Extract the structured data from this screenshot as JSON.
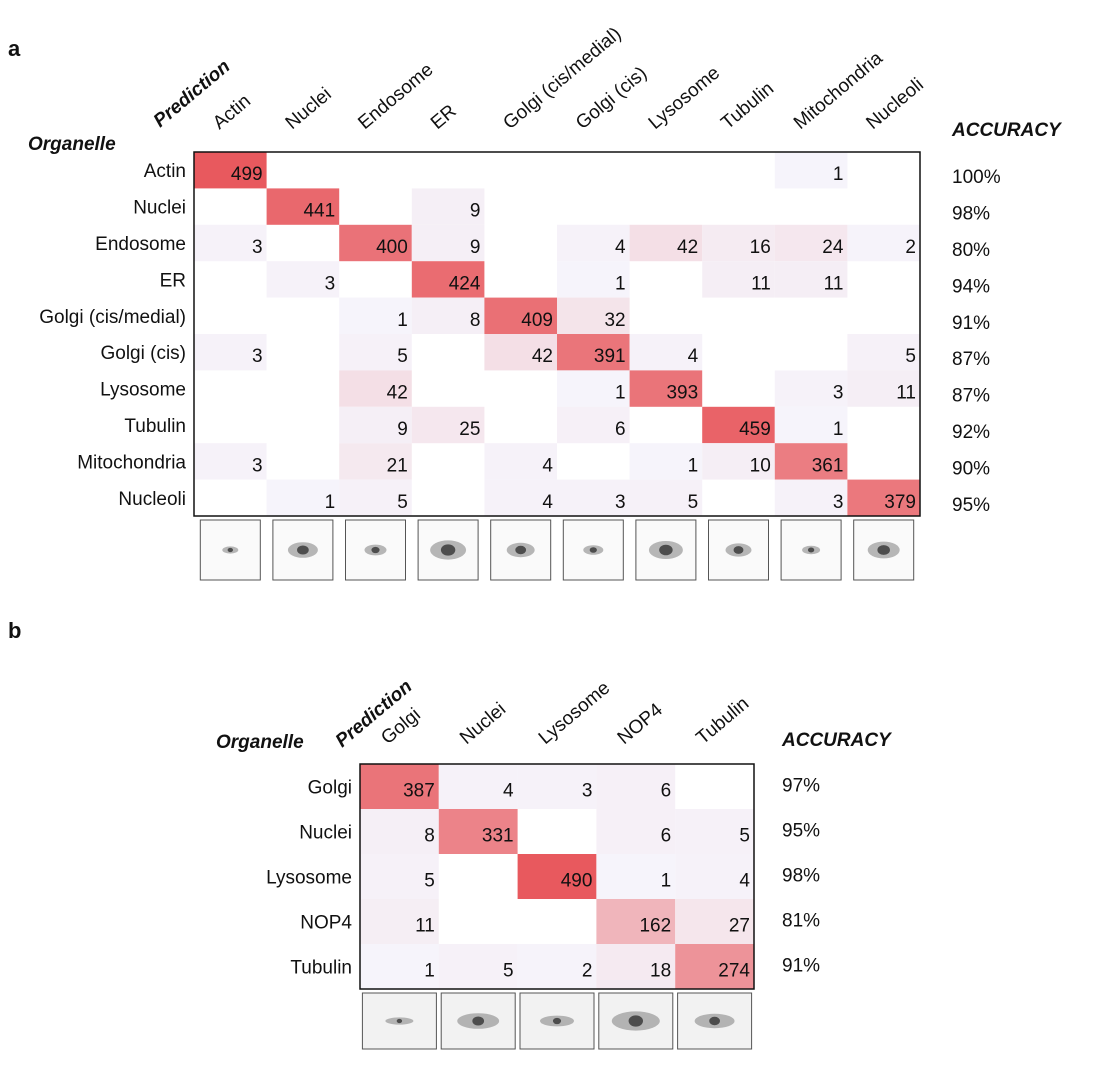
{
  "chart_data": [
    {
      "type": "heatmap",
      "panel": "a",
      "x_label": "Prediction",
      "y_label": "Organelle",
      "accuracy_title": "ACCURACY",
      "color": "#e8595e",
      "categories": [
        "Actin",
        "Nuclei",
        "Endosome",
        "ER",
        "Golgi (cis/medial)",
        "Golgi (cis)",
        "Lysosome",
        "Tubulin",
        "Mitochondria",
        "Nucleoli"
      ],
      "rows": [
        "Actin",
        "Nuclei",
        "Endosome",
        "ER",
        "Golgi (cis/medial)",
        "Golgi (cis)",
        "Lysosome",
        "Tubulin",
        "Mitochondria",
        "Nucleoli"
      ],
      "values": [
        [
          499,
          null,
          null,
          null,
          null,
          null,
          null,
          null,
          1,
          null
        ],
        [
          null,
          441,
          null,
          9,
          null,
          null,
          null,
          null,
          null,
          null
        ],
        [
          3,
          null,
          400,
          9,
          null,
          4,
          42,
          16,
          24,
          2
        ],
        [
          null,
          3,
          null,
          424,
          null,
          1,
          null,
          11,
          11,
          null
        ],
        [
          null,
          null,
          1,
          8,
          409,
          32,
          null,
          null,
          null,
          null
        ],
        [
          3,
          null,
          5,
          null,
          42,
          391,
          4,
          null,
          null,
          5
        ],
        [
          null,
          null,
          42,
          null,
          null,
          1,
          393,
          null,
          3,
          11
        ],
        [
          null,
          null,
          9,
          25,
          null,
          6,
          null,
          459,
          1,
          null
        ],
        [
          3,
          null,
          21,
          null,
          4,
          null,
          1,
          10,
          361,
          null
        ],
        [
          null,
          1,
          5,
          null,
          4,
          3,
          5,
          null,
          3,
          379
        ]
      ],
      "accuracy": {
        "values": [
          100,
          98,
          80,
          94,
          91,
          87,
          87,
          92,
          90,
          95
        ],
        "value_labels": [
          "100%",
          "98%",
          "80%",
          "94%",
          "91%",
          "87%",
          "87%",
          "92%",
          "90%",
          "95%"
        ]
      }
    },
    {
      "type": "heatmap",
      "panel": "b",
      "x_label": "Prediction",
      "y_label": "Organelle",
      "accuracy_title": "ACCURACY",
      "color": "#e8595e",
      "categories": [
        "Golgi",
        "Nuclei",
        "Lysosome",
        "NOP4",
        "Tubulin"
      ],
      "rows": [
        "Golgi",
        "Nuclei",
        "Lysosome",
        "NOP4",
        "Tubulin"
      ],
      "values": [
        [
          387,
          4,
          3,
          6,
          null
        ],
        [
          8,
          331,
          null,
          6,
          5
        ],
        [
          5,
          null,
          490,
          1,
          4
        ],
        [
          11,
          null,
          null,
          162,
          27
        ],
        [
          1,
          5,
          2,
          18,
          274
        ]
      ],
      "accuracy": {
        "values": [
          97,
          95,
          98,
          81,
          91
        ],
        "value_labels": [
          "97%",
          "95%",
          "98%",
          "81%",
          "91%"
        ]
      }
    }
  ]
}
